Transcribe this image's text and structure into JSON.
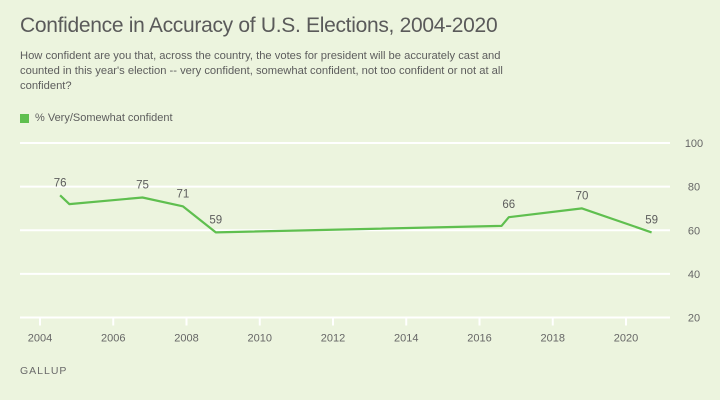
{
  "title": "Confidence in Accuracy of U.S. Elections, 2004-2020",
  "subtitle": "How confident are you that, across the country, the votes for president will be accurately cast and counted in this year's election -- very confident, somewhat confident, not too confident or not at all confident?",
  "source": "GALLUP",
  "colors": {
    "background": "#ecf4de",
    "series": "#5fbf4f",
    "grid": "#ffffff",
    "text": "#5d5d5d"
  },
  "chart_data": {
    "type": "line",
    "title": "Confidence in Accuracy of U.S. Elections, 2004-2020",
    "xlabel": "",
    "ylabel": "",
    "xlim": [
      2003.95,
      2021.7
    ],
    "ylim": [
      20,
      100
    ],
    "grid": true,
    "legend_position": "top-left",
    "x_ticks": [
      2004,
      2006,
      2008,
      2010,
      2012,
      2014,
      2016,
      2018,
      2020
    ],
    "x_tick_labels": [
      "2004",
      "2006",
      "2008",
      "2010",
      "2012",
      "2014",
      "2016",
      "2018",
      "2020"
    ],
    "y_ticks": [
      100,
      80,
      60,
      40,
      20
    ],
    "y_tick_labels": [
      "100",
      "80",
      "60",
      "40",
      "20"
    ],
    "y_axis_side": "right",
    "series": [
      {
        "name": "% Very/Somewhat confident",
        "color": "#5fbf4f",
        "points": [
          {
            "x": 2004.55,
            "y": 76,
            "label": "76"
          },
          {
            "x": 2004.8,
            "y": 72,
            "label": ""
          },
          {
            "x": 2006.8,
            "y": 75,
            "label": "75"
          },
          {
            "x": 2007.9,
            "y": 71,
            "label": "71"
          },
          {
            "x": 2008.8,
            "y": 59,
            "label": "59"
          },
          {
            "x": 2016.6,
            "y": 62,
            "label": ""
          },
          {
            "x": 2016.8,
            "y": 66,
            "label": "66"
          },
          {
            "x": 2018.8,
            "y": 70,
            "label": "70"
          },
          {
            "x": 2020.7,
            "y": 59,
            "label": "59"
          }
        ]
      }
    ]
  }
}
